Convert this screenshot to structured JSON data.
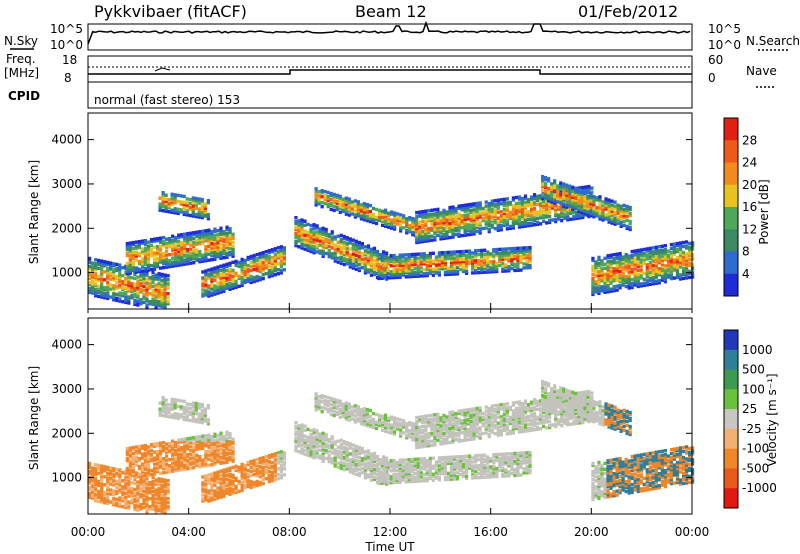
{
  "header": {
    "station": "Pykkvibaer (fitACF)",
    "beam": "Beam 12",
    "date": "01/Feb/2012"
  },
  "summary": {
    "nsky_label": "N.Sky",
    "nsky_top": "10^5",
    "nsky_bottom": "10^0",
    "nsearch_label": "N.Search",
    "freq_label": "Freq.",
    "freq_unit": "[MHz]",
    "freq_top": "18",
    "freq_bottom": "8",
    "nave_top": "60",
    "nave_bottom": "0",
    "nave_label": "Nave",
    "cpid_label": "CPID",
    "cpid_text": "normal (fast stereo) 153"
  },
  "colors": {
    "power_scale": [
      "#1f2bd6",
      "#2e6bd0",
      "#3c8a64",
      "#4fa85a",
      "#e8c21f",
      "#f28a1c",
      "#ee5a18",
      "#e02010"
    ],
    "velocity_scale": [
      "#2338b8",
      "#2f7f9a",
      "#3e9a4e",
      "#6ac23c",
      "#c8c6c0",
      "#f2b072",
      "#f0862a",
      "#e85a1a",
      "#e01a12"
    ],
    "ground_scatter": "#c4c2bc"
  },
  "chart_data": [
    {
      "type": "heatmap",
      "panel": "power",
      "ylabel": "Slant Range [km]",
      "ylim": [
        180,
        4600
      ],
      "y_ticks": [
        "1000",
        "2000",
        "3000",
        "4000"
      ],
      "colorbar_label": "Power [dB]",
      "colorbar_ticks": [
        "4",
        "8",
        "12",
        "16",
        "20",
        "24",
        "28"
      ],
      "xlim": [
        "00:00",
        "24:00"
      ]
    },
    {
      "type": "heatmap",
      "panel": "velocity",
      "ylabel": "Slant Range [km]",
      "ylim": [
        180,
        4600
      ],
      "y_ticks": [
        "1000",
        "2000",
        "3000",
        "4000"
      ],
      "colorbar_label": "Velocity [m s⁻¹]",
      "colorbar_ticks": [
        "1000",
        "500",
        "100",
        "25",
        "-25",
        "-100",
        "-500",
        "-1000"
      ],
      "xlabel": "Time UT",
      "x_ticks": [
        "00:00",
        "04:00",
        "08:00",
        "12:00",
        "16:00",
        "20:00",
        "00:00"
      ]
    }
  ]
}
